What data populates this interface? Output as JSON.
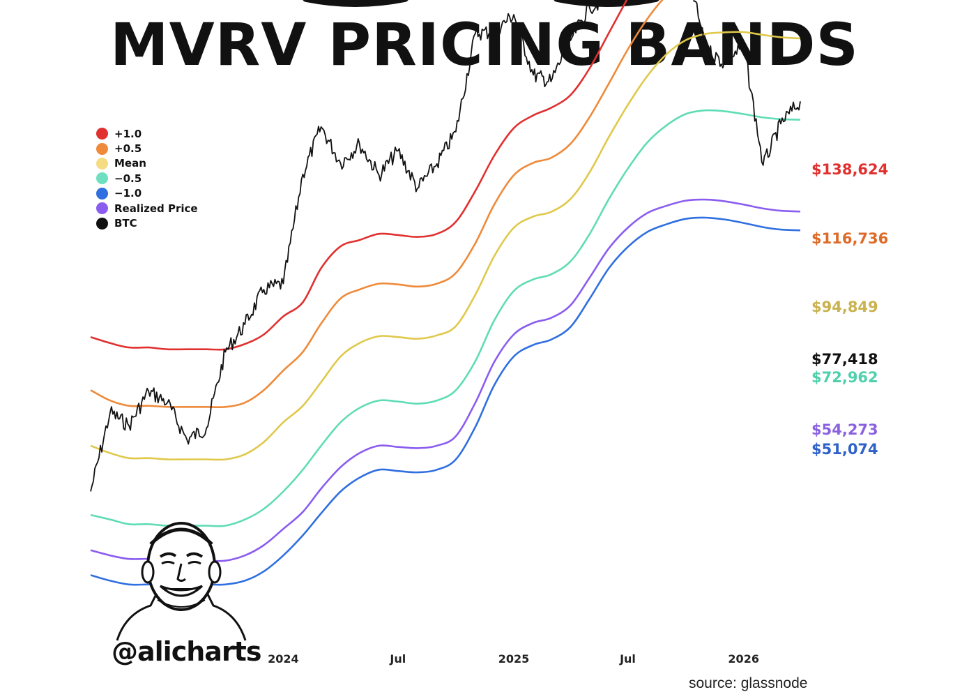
{
  "header": {
    "title": "MVRV PRICING BANDS"
  },
  "branding": {
    "handle": "@alicharts",
    "avatar_icon": "avatar-caricature-icon"
  },
  "source": "source: glassnode",
  "legend": [
    {
      "label": "+1.0",
      "color": "#e0302f"
    },
    {
      "label": "+0.5",
      "color": "#ee8a3a"
    },
    {
      "label": "Mean",
      "color": "#f5dc82"
    },
    {
      "label": "−0.5",
      "color": "#6fe0bf"
    },
    {
      "label": "−1.0",
      "color": "#2f6fe0"
    },
    {
      "label": "Realized Price",
      "color": "#8a5cf0"
    },
    {
      "label": "BTC",
      "color": "#111111"
    }
  ],
  "chart_data": {
    "type": "line",
    "xlabel": "",
    "ylabel": "",
    "x_ticks": [
      "2024",
      "Jul",
      "2025",
      "Jul",
      "2026"
    ],
    "x": [
      "2023-03-01",
      "2023-04-01",
      "2023-05-01",
      "2023-06-01",
      "2023-07-01",
      "2023-08-01",
      "2023-09-01",
      "2023-10-01",
      "2023-11-01",
      "2023-12-01",
      "2024-01-01",
      "2024-02-01",
      "2024-03-01",
      "2024-04-01",
      "2024-05-01",
      "2024-06-01",
      "2024-07-01",
      "2024-08-01",
      "2024-09-01",
      "2024-10-01",
      "2024-11-01",
      "2024-12-01",
      "2025-01-01",
      "2025-02-01",
      "2025-03-01",
      "2025-04-01",
      "2025-05-01",
      "2025-06-01",
      "2025-07-01",
      "2025-08-01",
      "2025-09-01",
      "2025-10-01",
      "2025-11-01",
      "2025-12-01",
      "2026-01-01",
      "2026-02-01",
      "2026-03-01",
      "2026-04-01"
    ],
    "series": [
      {
        "name": "+1.0",
        "color": "#e0302f",
        "end_label": "$138,624",
        "values": [
          36200,
          35500,
          35000,
          35000,
          34800,
          34800,
          34800,
          34800,
          35400,
          36500,
          38700,
          40500,
          45200,
          48500,
          49500,
          50500,
          50300,
          50000,
          50500,
          52500,
          58000,
          65000,
          71000,
          74000,
          75800,
          79000,
          86000,
          96500,
          108000,
          121000,
          132000,
          137800,
          141000,
          141500,
          140200,
          139500,
          138900,
          138624
        ]
      },
      {
        "name": "+0.5",
        "color": "#ee8a3a",
        "end_label": "$116,736",
        "values": [
          30500,
          29500,
          29000,
          29000,
          28900,
          28900,
          28900,
          28900,
          29300,
          30500,
          32500,
          34500,
          37800,
          41000,
          42200,
          43000,
          42900,
          42600,
          43000,
          44500,
          49000,
          55500,
          61000,
          63500,
          64500,
          67500,
          73500,
          82000,
          91500,
          101000,
          109000,
          114000,
          116800,
          117700,
          117800,
          117200,
          116800,
          116736
        ]
      },
      {
        "name": "Mean",
        "color": "#e0c84a",
        "end_label": "$94,849",
        "values": [
          25500,
          24900,
          24500,
          24500,
          24400,
          24400,
          24400,
          24400,
          24800,
          25800,
          27500,
          29000,
          31300,
          34000,
          35500,
          36300,
          36200,
          36000,
          36400,
          37500,
          41500,
          47000,
          51500,
          53400,
          54200,
          56500,
          61500,
          69000,
          76500,
          84000,
          90200,
          94300,
          96200,
          96700,
          96800,
          95900,
          95200,
          94849
        ]
      },
      {
        "name": "−0.5",
        "color": "#5fdcb5",
        "end_label": "$72,962",
        "values": [
          20400,
          20100,
          19800,
          19800,
          19700,
          19700,
          19700,
          19700,
          20100,
          20800,
          22000,
          23600,
          25500,
          27500,
          28800,
          29500,
          29400,
          29200,
          29500,
          30500,
          33500,
          38200,
          42000,
          43600,
          44300,
          46200,
          50400,
          56500,
          62300,
          67800,
          71700,
          74300,
          75200,
          75000,
          74300,
          73500,
          73100,
          72962
        ]
      },
      {
        "name": "Realized Price",
        "color": "#8a5cf0",
        "end_label": "$54,273",
        "values": [
          18200,
          17900,
          17700,
          17700,
          17600,
          17600,
          17600,
          17600,
          17900,
          18500,
          19500,
          20600,
          22200,
          23800,
          24900,
          25500,
          25400,
          25300,
          25500,
          26300,
          29300,
          33400,
          36500,
          37900,
          38500,
          40100,
          43800,
          48200,
          51500,
          54000,
          55300,
          56200,
          56400,
          56100,
          55500,
          54800,
          54400,
          54273
        ]
      },
      {
        "name": "−1.0",
        "color": "#2f6fe0",
        "end_label": "$51,074",
        "values": [
          16800,
          16500,
          16300,
          16300,
          16300,
          16300,
          16300,
          16300,
          16500,
          17000,
          17900,
          19100,
          20500,
          22000,
          23000,
          23600,
          23500,
          23400,
          23600,
          24400,
          27100,
          31000,
          34000,
          35300,
          35900,
          37400,
          40900,
          45200,
          48400,
          50800,
          52100,
          53000,
          53200,
          52900,
          52300,
          51600,
          51200,
          51074
        ]
      },
      {
        "name": "BTC",
        "color": "#111111",
        "end_label": "$77,418",
        "values": [
          22000,
          28400,
          27200,
          30400,
          29300,
          26000,
          27000,
          34500,
          37700,
          42200,
          43000,
          61200,
          71300,
          63400,
          67500,
          61000,
          66000,
          58500,
          63300,
          70200,
          96400,
          97000,
          102400,
          84300,
          82500,
          94200,
          105000,
          107500,
          117900,
          108000,
          112000,
          122000,
          92000,
          87500,
          92500,
          63000,
          72000,
          77418
        ]
      }
    ]
  }
}
